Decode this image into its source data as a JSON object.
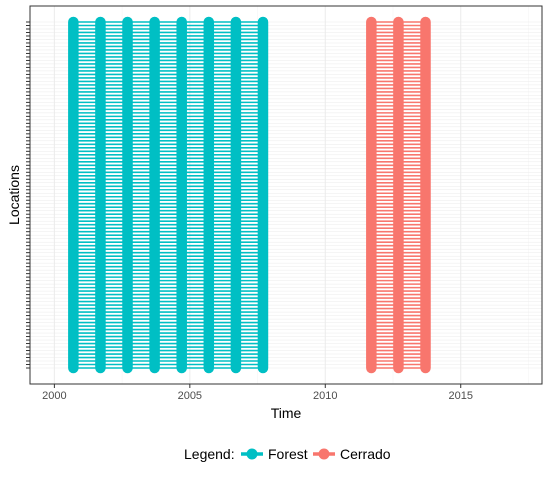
{
  "chart_data": {
    "type": "line",
    "title": "",
    "xlabel": "Time",
    "ylabel": "Locations",
    "xlim": [
      1999.1,
      2018.0
    ],
    "x_ticks": [
      2000,
      2005,
      2010,
      2015
    ],
    "x_tick_labels": [
      "2000",
      "2005",
      "2010",
      "2015"
    ],
    "y_tick_labels_visible": false,
    "location_count": 100,
    "grid": true,
    "theme": "bw",
    "legend": {
      "title": "Legend:",
      "position": "bottom"
    },
    "series": [
      {
        "name": "Forest",
        "color": "#00BFC4",
        "x": [
          2000.7,
          2001.7,
          2002.7,
          2003.7,
          2004.7,
          2005.7,
          2006.7,
          2007.7
        ]
      },
      {
        "name": "Cerrado",
        "color": "#F8766D",
        "x": [
          2011.7,
          2012.7,
          2013.7
        ]
      }
    ]
  }
}
